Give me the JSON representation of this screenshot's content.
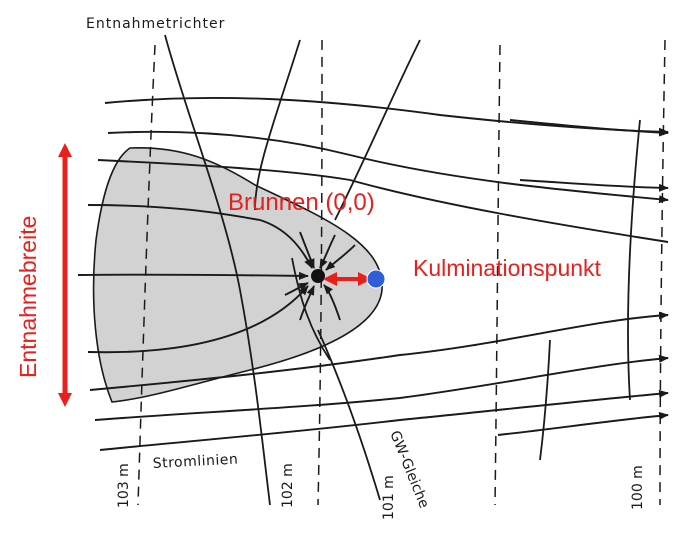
{
  "labels": {
    "capture_zone": "Entnahmetrichter",
    "well": "Brunnen (0,0)",
    "culmination_point": "Kulminationspunkt",
    "capture_width": "Entnahmebreite",
    "streamlines": "Stromlinien",
    "equipotential": "GW-Gleiche"
  },
  "contours": [
    "103 m",
    "102 m",
    "101 m",
    "100 m"
  ],
  "colors": {
    "annotation": "#e8201d",
    "culmination_marker": "#2f5fd8",
    "capture_zone_fill": "#d2d2d2",
    "ink": "#1a1a1a"
  }
}
